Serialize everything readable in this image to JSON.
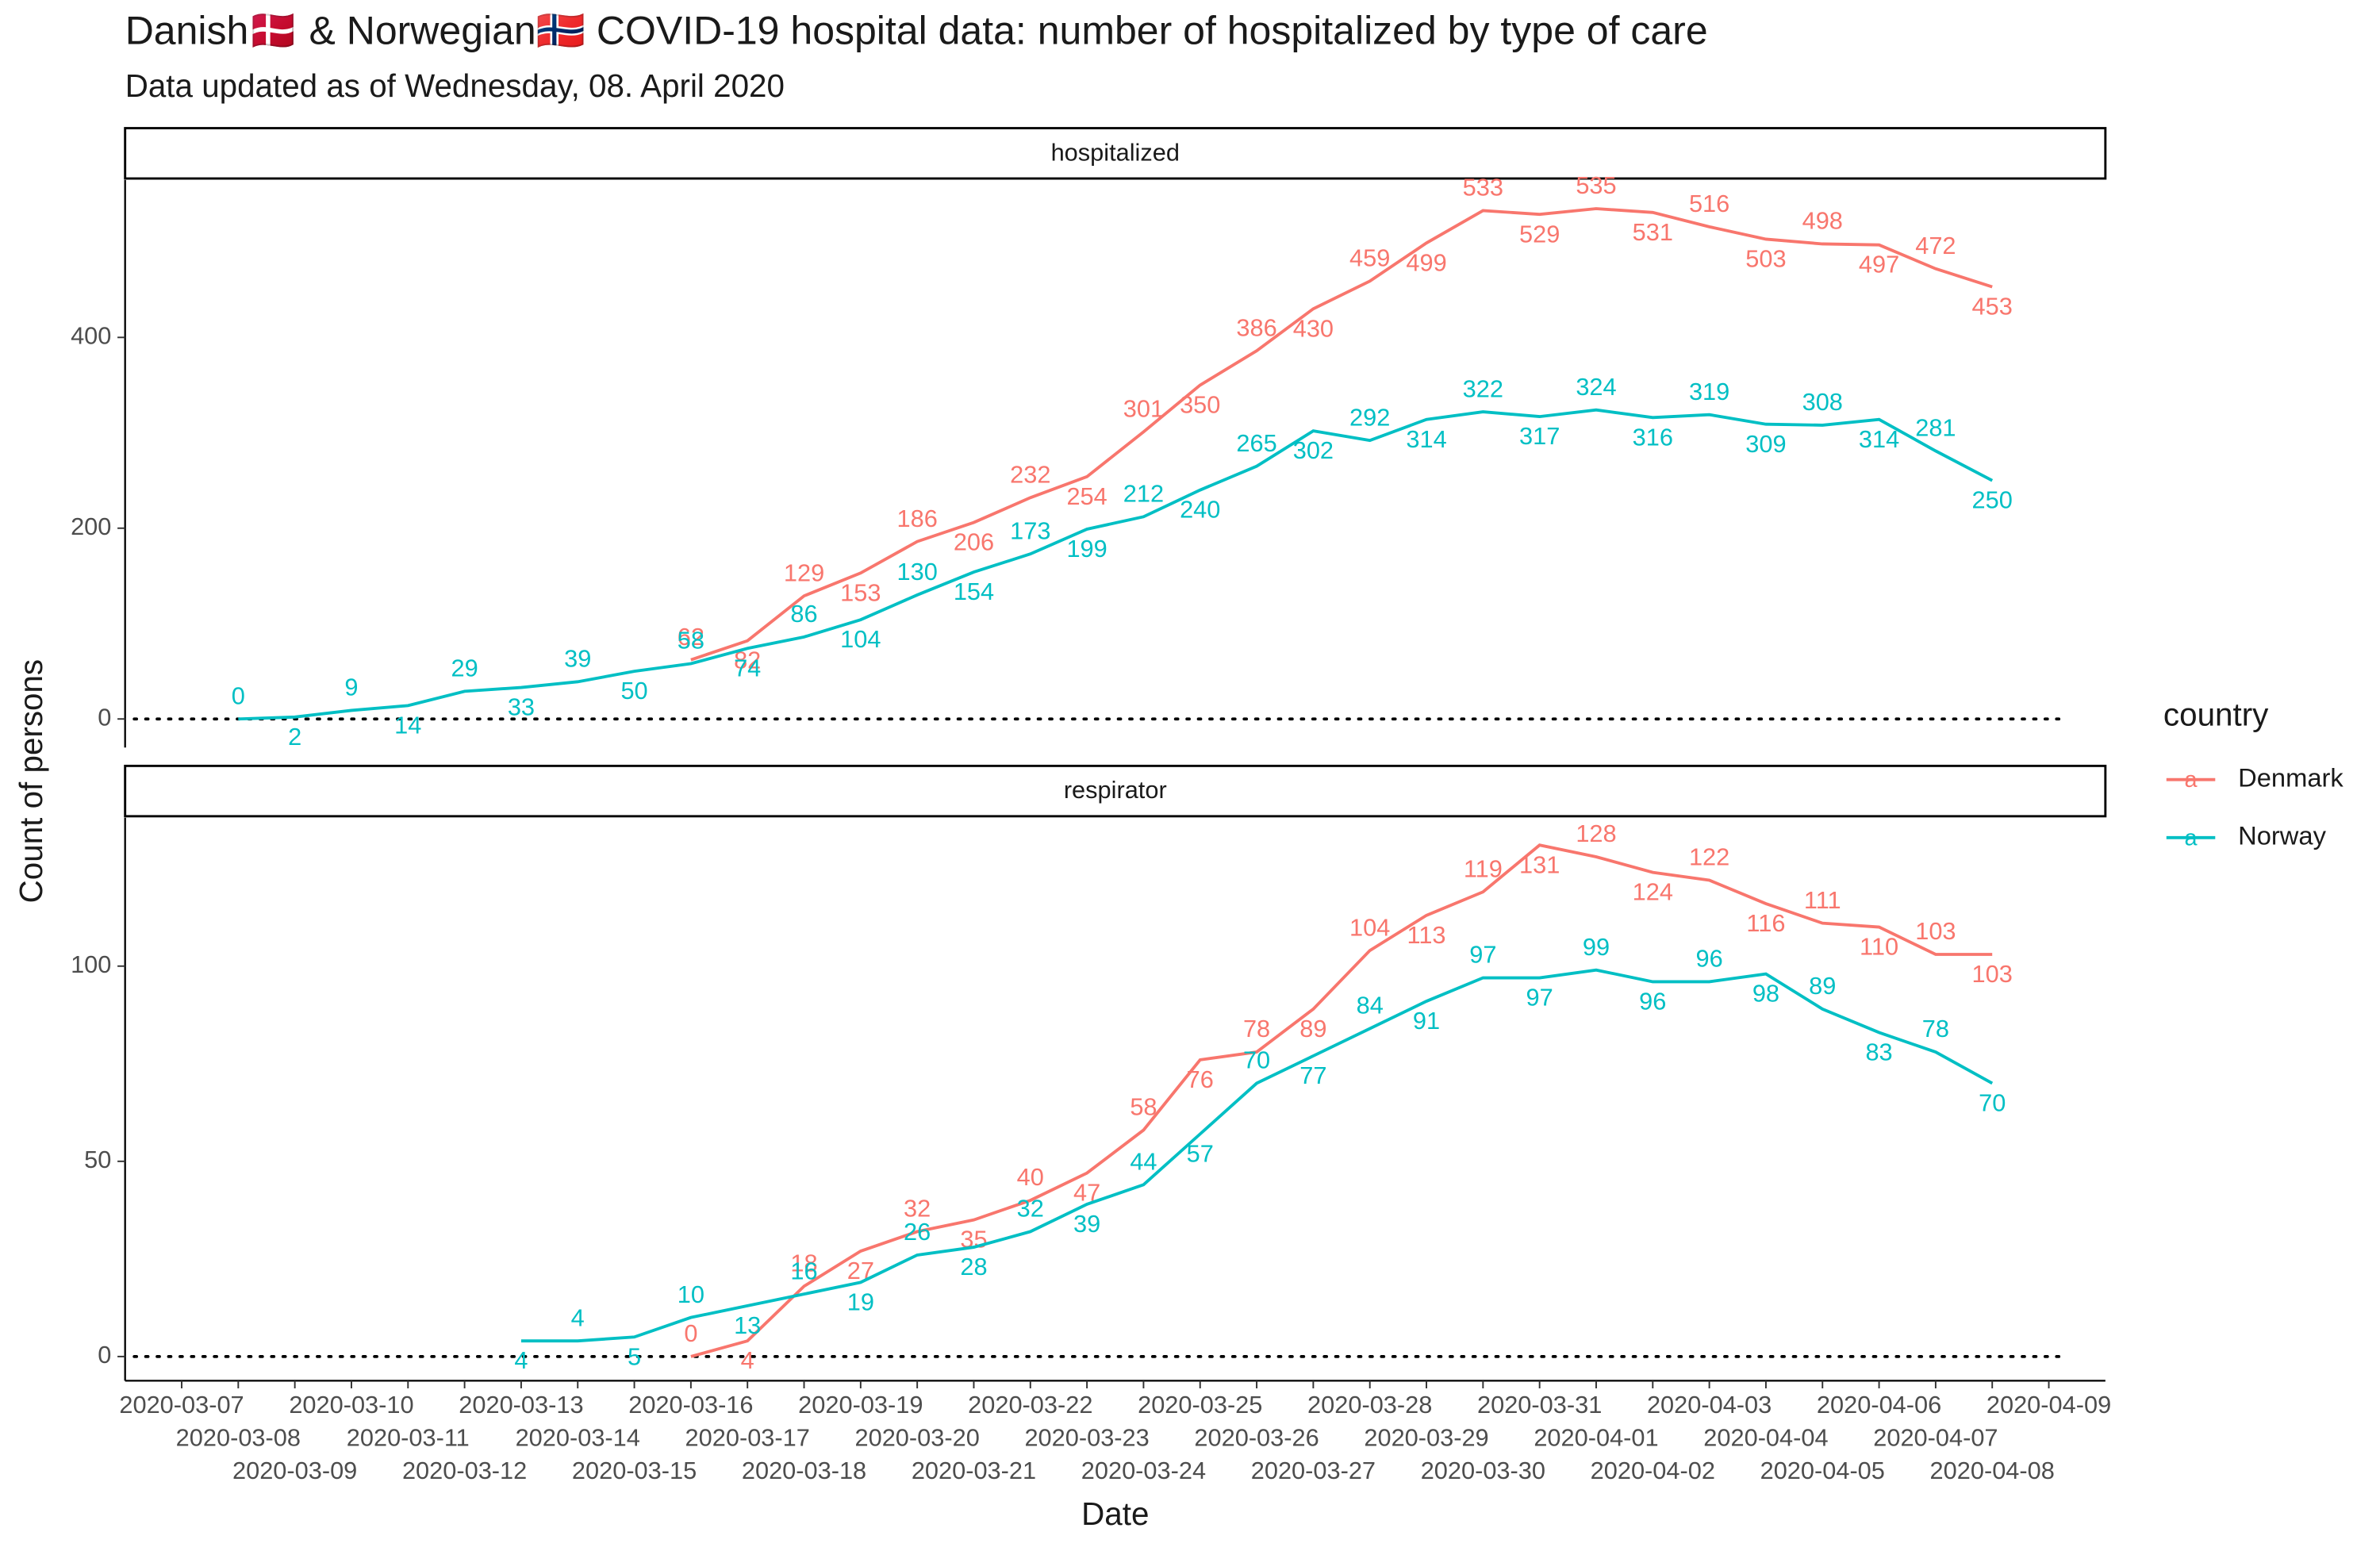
{
  "header": {
    "title": "Danish🇩🇰 & Norwegian🇳🇴 COVID-19 hospital data: number of hospitalized by type of care",
    "subtitle": "Data updated as of Wednesday, 08. April 2020",
    "xlabel": "Date",
    "ylabel": "Count of persons",
    "legend_title": "country"
  },
  "chart_data": [
    {
      "type": "line",
      "strip": "hospitalized",
      "x": [
        "2020-03-08",
        "2020-03-09",
        "2020-03-10",
        "2020-03-11",
        "2020-03-12",
        "2020-03-13",
        "2020-03-14",
        "2020-03-15",
        "2020-03-16",
        "2020-03-17",
        "2020-03-18",
        "2020-03-19",
        "2020-03-20",
        "2020-03-21",
        "2020-03-22",
        "2020-03-23",
        "2020-03-24",
        "2020-03-25",
        "2020-03-26",
        "2020-03-27",
        "2020-03-28",
        "2020-03-29",
        "2020-03-30",
        "2020-03-31",
        "2020-04-01",
        "2020-04-02",
        "2020-04-03",
        "2020-04-04",
        "2020-04-05",
        "2020-04-06",
        "2020-04-07",
        "2020-04-08"
      ],
      "series": [
        {
          "name": "Denmark",
          "color": "#F8766D",
          "values": [
            null,
            null,
            null,
            null,
            null,
            null,
            null,
            null,
            62,
            82,
            129,
            153,
            186,
            206,
            232,
            254,
            301,
            350,
            386,
            430,
            459,
            499,
            533,
            529,
            535,
            531,
            516,
            503,
            498,
            497,
            472,
            453
          ]
        },
        {
          "name": "Norway",
          "color": "#00BFC4",
          "values": [
            0,
            2,
            9,
            14,
            29,
            33,
            39,
            50,
            58,
            74,
            86,
            104,
            130,
            154,
            173,
            199,
            212,
            240,
            265,
            302,
            292,
            314,
            322,
            317,
            324,
            316,
            319,
            309,
            308,
            314,
            281,
            250
          ]
        }
      ],
      "xlim": [
        "2020-03-06",
        "2020-04-10"
      ],
      "ylim": [
        -30,
        565
      ],
      "yticks": [
        0,
        200,
        400
      ],
      "hline": 0
    },
    {
      "type": "line",
      "strip": "respirator",
      "x": [
        "2020-03-08",
        "2020-03-09",
        "2020-03-10",
        "2020-03-11",
        "2020-03-12",
        "2020-03-13",
        "2020-03-14",
        "2020-03-15",
        "2020-03-16",
        "2020-03-17",
        "2020-03-18",
        "2020-03-19",
        "2020-03-20",
        "2020-03-21",
        "2020-03-22",
        "2020-03-23",
        "2020-03-24",
        "2020-03-25",
        "2020-03-26",
        "2020-03-27",
        "2020-03-28",
        "2020-03-29",
        "2020-03-30",
        "2020-03-31",
        "2020-04-01",
        "2020-04-02",
        "2020-04-03",
        "2020-04-04",
        "2020-04-05",
        "2020-04-06",
        "2020-04-07",
        "2020-04-08"
      ],
      "series": [
        {
          "name": "Denmark",
          "color": "#F8766D",
          "values": [
            null,
            null,
            null,
            null,
            null,
            null,
            null,
            null,
            0,
            4,
            18,
            27,
            32,
            35,
            40,
            47,
            58,
            76,
            78,
            89,
            104,
            113,
            119,
            131,
            128,
            124,
            122,
            116,
            111,
            110,
            103,
            103
          ]
        },
        {
          "name": "Norway",
          "color": "#00BFC4",
          "values": [
            null,
            null,
            null,
            null,
            null,
            4,
            4,
            5,
            10,
            13,
            16,
            19,
            26,
            28,
            32,
            39,
            44,
            57,
            70,
            77,
            84,
            91,
            97,
            97,
            99,
            96,
            96,
            98,
            89,
            83,
            78,
            70
          ]
        }
      ],
      "xlim": [
        "2020-03-06",
        "2020-04-10"
      ],
      "ylim": [
        -6.2,
        138
      ],
      "yticks": [
        0,
        50,
        100
      ],
      "hline": 0,
      "xticks": [
        "2020-03-07",
        "2020-03-08",
        "2020-03-09",
        "2020-03-10",
        "2020-03-11",
        "2020-03-12",
        "2020-03-13",
        "2020-03-14",
        "2020-03-15",
        "2020-03-16",
        "2020-03-17",
        "2020-03-18",
        "2020-03-19",
        "2020-03-20",
        "2020-03-21",
        "2020-03-22",
        "2020-03-23",
        "2020-03-24",
        "2020-03-25",
        "2020-03-26",
        "2020-03-27",
        "2020-03-28",
        "2020-03-29",
        "2020-03-30",
        "2020-03-31",
        "2020-04-01",
        "2020-04-02",
        "2020-04-03",
        "2020-04-04",
        "2020-04-05",
        "2020-04-06",
        "2020-04-07",
        "2020-04-08",
        "2020-04-09"
      ]
    }
  ]
}
